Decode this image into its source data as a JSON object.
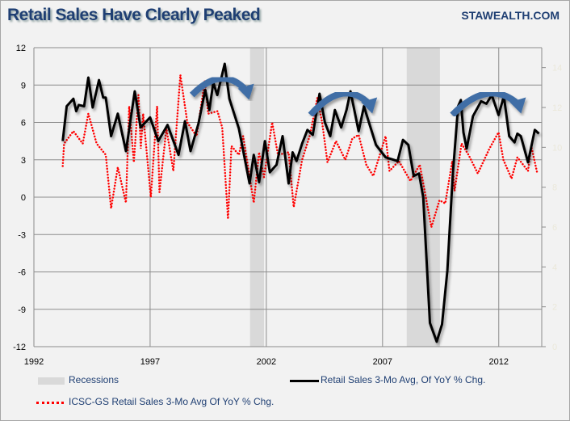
{
  "title": "Retail Sales Have Clearly Peaked",
  "brand": "STAWEALTH.COM",
  "chart_data": {
    "type": "line",
    "title": "Retail Sales Have Clearly Peaked",
    "xlim": [
      1992,
      2013.85
    ],
    "ylim": [
      -12,
      12
    ],
    "y2lim": [
      0,
      15
    ],
    "x_ticks": [
      "1992",
      "1997",
      "2002",
      "2007",
      "2012"
    ],
    "y_ticks": [
      "12",
      "9",
      "6",
      "3",
      "0",
      "-3",
      "-6",
      "-9",
      "-12"
    ],
    "y2_ticks": [
      "14",
      "12",
      "10",
      "8",
      "6",
      "4",
      "2",
      "0"
    ],
    "grid": true,
    "legend_position": "bottom",
    "recessions": [
      [
        2001.3,
        2001.9
      ],
      [
        2008.04,
        2009.47
      ]
    ],
    "colors": {
      "background": "#f2f2f2",
      "grid": "#8c8c8c",
      "recession": "#d9d9d9",
      "retail": "#000000",
      "icsc": "#ff0000",
      "arrow": "#3f6ea6",
      "text": "#1f3f73",
      "y2_text": "#ebe8da"
    },
    "legend": {
      "recessions": "Recessions",
      "retail": "Retail Sales 3-Mo Avg, Of YoY % Chg.",
      "icsc": "ICSC-GS Retail Sales 3-Mo Avg Of YoY % Chg."
    },
    "series": [
      {
        "name": "Retail Sales 3-Mo Avg, Of YoY % Chg.",
        "style": "solid",
        "points": [
          [
            1993.24,
            4.5
          ],
          [
            1993.41,
            7.3
          ],
          [
            1993.7,
            7.9
          ],
          [
            1993.82,
            6.9
          ],
          [
            1993.93,
            7.4
          ],
          [
            1994.16,
            7.3
          ],
          [
            1994.34,
            9.6
          ],
          [
            1994.53,
            7.2
          ],
          [
            1994.8,
            9.4
          ],
          [
            1994.98,
            8.0
          ],
          [
            1995.09,
            8.0
          ],
          [
            1995.32,
            4.9
          ],
          [
            1995.61,
            6.7
          ],
          [
            1995.96,
            3.7
          ],
          [
            1996.34,
            8.5
          ],
          [
            1996.59,
            5.6
          ],
          [
            1997.0,
            6.4
          ],
          [
            1997.35,
            4.5
          ],
          [
            1997.75,
            5.8
          ],
          [
            1998.22,
            3.4
          ],
          [
            1998.5,
            6.1
          ],
          [
            1998.74,
            3.7
          ],
          [
            1999.08,
            5.9
          ],
          [
            1999.37,
            8.6
          ],
          [
            1999.55,
            7.0
          ],
          [
            1999.72,
            9.2
          ],
          [
            1999.89,
            8.2
          ],
          [
            2000.21,
            10.7
          ],
          [
            2000.41,
            7.9
          ],
          [
            2000.82,
            5.5
          ],
          [
            2001.28,
            1.1
          ],
          [
            2001.46,
            3.4
          ],
          [
            2001.69,
            1.2
          ],
          [
            2001.94,
            4.5
          ],
          [
            2002.15,
            2.0
          ],
          [
            2002.44,
            2.6
          ],
          [
            2002.7,
            4.9
          ],
          [
            2002.96,
            1.1
          ],
          [
            2003.13,
            3.6
          ],
          [
            2003.3,
            2.9
          ],
          [
            2003.54,
            4.3
          ],
          [
            2003.77,
            5.4
          ],
          [
            2004.0,
            5.0
          ],
          [
            2004.29,
            8.3
          ],
          [
            2004.52,
            6.0
          ],
          [
            2004.75,
            4.9
          ],
          [
            2004.95,
            7.0
          ],
          [
            2005.22,
            5.6
          ],
          [
            2005.45,
            7.0
          ],
          [
            2005.62,
            8.5
          ],
          [
            2005.97,
            5.3
          ],
          [
            2006.2,
            7.3
          ],
          [
            2006.38,
            6.2
          ],
          [
            2006.72,
            4.2
          ],
          [
            2007.13,
            3.2
          ],
          [
            2007.65,
            2.9
          ],
          [
            2007.88,
            4.6
          ],
          [
            2008.11,
            4.2
          ],
          [
            2008.34,
            1.7
          ],
          [
            2008.57,
            1.9
          ],
          [
            2008.75,
            0.0
          ],
          [
            2009.04,
            -10.1
          ],
          [
            2009.33,
            -11.6
          ],
          [
            2009.56,
            -10.2
          ],
          [
            2009.79,
            -5.9
          ],
          [
            2010.02,
            1.7
          ],
          [
            2010.25,
            7.3
          ],
          [
            2010.37,
            7.8
          ],
          [
            2010.48,
            5.2
          ],
          [
            2010.62,
            3.9
          ],
          [
            2010.89,
            6.5
          ],
          [
            2011.24,
            7.7
          ],
          [
            2011.47,
            7.5
          ],
          [
            2011.7,
            8.2
          ],
          [
            2011.99,
            6.6
          ],
          [
            2012.22,
            8.1
          ],
          [
            2012.45,
            4.9
          ],
          [
            2012.68,
            4.4
          ],
          [
            2012.8,
            5.1
          ],
          [
            2012.95,
            4.9
          ],
          [
            2013.26,
            2.8
          ],
          [
            2013.55,
            5.4
          ],
          [
            2013.73,
            5.1
          ]
        ]
      },
      {
        "name": "ICSC-GS Retail Sales 3-Mo Avg Of YoY % Chg.",
        "style": "dotted",
        "points": [
          [
            1993.24,
            2.5
          ],
          [
            1993.3,
            4.3
          ],
          [
            1993.7,
            5.3
          ],
          [
            1994.1,
            4.3
          ],
          [
            1994.34,
            6.7
          ],
          [
            1994.7,
            4.3
          ],
          [
            1995.09,
            3.4
          ],
          [
            1995.32,
            -0.9
          ],
          [
            1995.61,
            2.4
          ],
          [
            1995.96,
            -0.45
          ],
          [
            1996.1,
            7.3
          ],
          [
            1996.3,
            2.8
          ],
          [
            1996.5,
            8.2
          ],
          [
            1996.6,
            3.9
          ],
          [
            1996.7,
            6.7
          ],
          [
            1997.03,
            0.0
          ],
          [
            1997.3,
            7.3
          ],
          [
            1997.4,
            0.4
          ],
          [
            1997.7,
            5.5
          ],
          [
            1998.0,
            2.1
          ],
          [
            1998.3,
            9.8
          ],
          [
            1998.6,
            6.0
          ],
          [
            1999.0,
            4.9
          ],
          [
            1999.35,
            9.3
          ],
          [
            1999.5,
            6.7
          ],
          [
            1999.9,
            6.9
          ],
          [
            2000.1,
            5.6
          ],
          [
            2000.35,
            -1.75
          ],
          [
            2000.5,
            4.1
          ],
          [
            2000.82,
            3.4
          ],
          [
            2001.0,
            4.9
          ],
          [
            2001.46,
            -0.45
          ],
          [
            2001.69,
            3.6
          ],
          [
            2001.9,
            1.6
          ],
          [
            2002.25,
            6.0
          ],
          [
            2002.5,
            3.4
          ],
          [
            2002.96,
            3.6
          ],
          [
            2003.18,
            -0.8
          ],
          [
            2003.54,
            3.0
          ],
          [
            2003.88,
            5.0
          ],
          [
            2004.2,
            8.0
          ],
          [
            2004.4,
            6.0
          ],
          [
            2004.63,
            2.8
          ],
          [
            2005.0,
            4.5
          ],
          [
            2005.4,
            3.0
          ],
          [
            2005.7,
            4.7
          ],
          [
            2005.97,
            5.0
          ],
          [
            2006.3,
            2.6
          ],
          [
            2006.6,
            1.7
          ],
          [
            2007.13,
            4.9
          ],
          [
            2007.3,
            2.1
          ],
          [
            2007.7,
            2.9
          ],
          [
            2008.2,
            1.3
          ],
          [
            2008.6,
            2.6
          ],
          [
            2009.1,
            -2.4
          ],
          [
            2009.45,
            -0.25
          ],
          [
            2009.7,
            -0.5
          ],
          [
            2010.0,
            2.9
          ],
          [
            2010.1,
            0.5
          ],
          [
            2010.4,
            4.3
          ],
          [
            2010.7,
            3.4
          ],
          [
            2011.1,
            1.9
          ],
          [
            2011.6,
            3.9
          ],
          [
            2011.99,
            5.2
          ],
          [
            2012.2,
            3.0
          ],
          [
            2012.55,
            1.5
          ],
          [
            2012.8,
            3.2
          ],
          [
            2013.26,
            2.1
          ],
          [
            2013.4,
            4.1
          ],
          [
            2013.65,
            2.0
          ]
        ]
      }
    ],
    "annotations": [
      {
        "type": "curved-arrow",
        "from": [
          1998.8,
          8.2
        ],
        "to": [
          2001.4,
          8.2
        ]
      },
      {
        "type": "curved-arrow",
        "from": [
          2003.9,
          6.6
        ],
        "to": [
          2006.7,
          7.1
        ]
      },
      {
        "type": "curved-arrow",
        "from": [
          2010.0,
          6.6
        ],
        "to": [
          2013.1,
          7.1
        ]
      }
    ]
  }
}
